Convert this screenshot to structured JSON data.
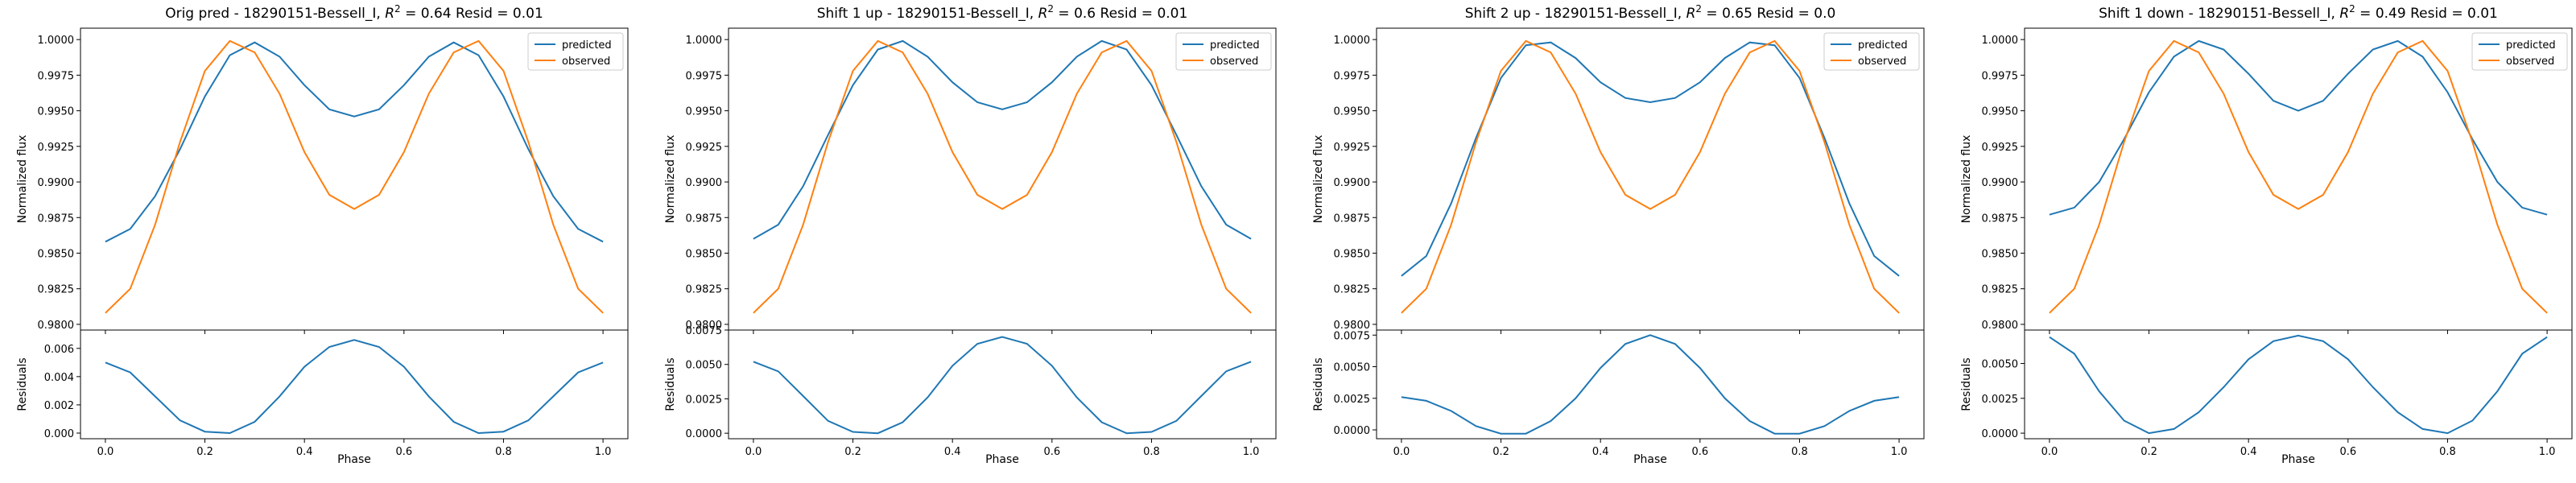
{
  "figure": {
    "xlabel": "Phase",
    "ylabel_top": "Normalized flux",
    "ylabel_bottom": "Residuals",
    "colors": {
      "predicted": "#1f77b4",
      "observed": "#ff7f0e"
    },
    "legend": [
      "predicted",
      "observed"
    ]
  },
  "chart_data": [
    {
      "type": "line",
      "title": "Orig pred - 18290151-Bessell_I, R² = 0.64 Resid = 0.01",
      "title_parts": {
        "prefix": "Orig pred - 18290151-Bessell_I, ",
        "r2_label": "R",
        "r2_sup": "2",
        "suffix": " = 0.64 Resid = 0.01"
      },
      "legend_placement": "top-right",
      "top": {
        "ylim": [
          0.9796,
          1.0008
        ],
        "yticks": [
          "0.9800",
          "0.9825",
          "0.9850",
          "0.9875",
          "0.9900",
          "0.9925",
          "0.9950",
          "0.9975",
          "1.0000"
        ],
        "xlim": [
          -0.05,
          1.05
        ],
        "series": [
          {
            "name": "predicted",
            "x": [
              0,
              0.05,
              0.1,
              0.15,
              0.2,
              0.25,
              0.3,
              0.35,
              0.4,
              0.45,
              0.5,
              0.55,
              0.6,
              0.65,
              0.7,
              0.75,
              0.8,
              0.85,
              0.9,
              0.95,
              1.0
            ],
            "y": [
              0.9858,
              0.9867,
              0.989,
              0.9923,
              0.996,
              0.9989,
              0.9998,
              0.9988,
              0.9968,
              0.9951,
              0.9946,
              0.9951,
              0.9968,
              0.9988,
              0.9998,
              0.9989,
              0.996,
              0.9923,
              0.989,
              0.9867,
              0.9858
            ]
          },
          {
            "name": "observed",
            "x": [
              0,
              0.05,
              0.1,
              0.15,
              0.2,
              0.25,
              0.3,
              0.35,
              0.4,
              0.45,
              0.5,
              0.55,
              0.6,
              0.65,
              0.7,
              0.75,
              0.8,
              0.85,
              0.9,
              0.95,
              1.0
            ],
            "y": [
              0.9808,
              0.9825,
              0.987,
              0.9928,
              0.9978,
              0.9999,
              0.9991,
              0.9962,
              0.9921,
              0.9891,
              0.9881,
              0.9891,
              0.9921,
              0.9962,
              0.9991,
              0.9999,
              0.9978,
              0.9928,
              0.987,
              0.9825,
              0.9808
            ]
          }
        ]
      },
      "bottom": {
        "ylim": [
          -0.0004,
          0.0073
        ],
        "yticks": [
          "0.000",
          "0.002",
          "0.004",
          "0.006"
        ],
        "xticks": [
          "0.0",
          "0.2",
          "0.4",
          "0.6",
          "0.8",
          "1.0"
        ],
        "x": [
          0,
          0.05,
          0.1,
          0.15,
          0.2,
          0.25,
          0.3,
          0.35,
          0.4,
          0.45,
          0.5,
          0.55,
          0.6,
          0.65,
          0.7,
          0.75,
          0.8,
          0.85,
          0.9,
          0.95,
          1.0
        ],
        "values": [
          0.005,
          0.0043,
          0.0026,
          0.0009,
          0.0001,
          0.0,
          0.0008,
          0.0026,
          0.0047,
          0.0061,
          0.0066,
          0.0061,
          0.0047,
          0.0026,
          0.0008,
          0.0,
          0.0001,
          0.0009,
          0.0026,
          0.0043,
          0.005
        ]
      }
    },
    {
      "type": "line",
      "title": "Shift 1 up - 18290151-Bessell_I, R² = 0.6 Resid = 0.01",
      "title_parts": {
        "prefix": "Shift 1 up - 18290151-Bessell_I, ",
        "r2_label": "R",
        "r2_sup": "2",
        "suffix": " = 0.6 Resid = 0.01"
      },
      "legend_placement": "top-right",
      "top": {
        "ylim": [
          0.9796,
          1.0008
        ],
        "yticks": [
          "0.9800",
          "0.9825",
          "0.9850",
          "0.9875",
          "0.9900",
          "0.9925",
          "0.9950",
          "0.9975",
          "1.0000"
        ],
        "xlim": [
          -0.05,
          1.05
        ],
        "series": [
          {
            "name": "predicted",
            "x": [
              0,
              0.05,
              0.1,
              0.15,
              0.2,
              0.25,
              0.3,
              0.35,
              0.4,
              0.45,
              0.5,
              0.55,
              0.6,
              0.65,
              0.7,
              0.75,
              0.8,
              0.85,
              0.9,
              0.95,
              1.0
            ],
            "y": [
              0.986,
              0.987,
              0.9897,
              0.9933,
              0.9968,
              0.9993,
              0.9999,
              0.9988,
              0.997,
              0.9956,
              0.9951,
              0.9956,
              0.997,
              0.9988,
              0.9999,
              0.9993,
              0.9968,
              0.9933,
              0.9897,
              0.987,
              0.986
            ]
          },
          {
            "name": "observed",
            "x": [
              0,
              0.05,
              0.1,
              0.15,
              0.2,
              0.25,
              0.3,
              0.35,
              0.4,
              0.45,
              0.5,
              0.55,
              0.6,
              0.65,
              0.7,
              0.75,
              0.8,
              0.85,
              0.9,
              0.95,
              1.0
            ],
            "y": [
              0.9808,
              0.9825,
              0.987,
              0.9928,
              0.9978,
              0.9999,
              0.9991,
              0.9962,
              0.9921,
              0.9891,
              0.9881,
              0.9891,
              0.9921,
              0.9962,
              0.9991,
              0.9999,
              0.9978,
              0.9928,
              0.987,
              0.9825,
              0.9808
            ]
          }
        ]
      },
      "bottom": {
        "ylim": [
          -0.0004,
          0.0075
        ],
        "yticks": [
          "0.0000",
          "0.0025",
          "0.0050",
          "0.0075"
        ],
        "xticks": [
          "0.0",
          "0.2",
          "0.4",
          "0.6",
          "0.8",
          "1.0"
        ],
        "x": [
          0,
          0.05,
          0.1,
          0.15,
          0.2,
          0.25,
          0.3,
          0.35,
          0.4,
          0.45,
          0.5,
          0.55,
          0.6,
          0.65,
          0.7,
          0.75,
          0.8,
          0.85,
          0.9,
          0.95,
          1.0
        ],
        "values": [
          0.0052,
          0.0045,
          0.0027,
          0.0009,
          0.0001,
          0.0,
          0.0008,
          0.0026,
          0.0049,
          0.0065,
          0.007,
          0.0065,
          0.0049,
          0.0026,
          0.0008,
          0.0,
          0.0001,
          0.0009,
          0.0027,
          0.0045,
          0.0052
        ]
      }
    },
    {
      "type": "line",
      "title": "Shift 2 up - 18290151-Bessell_I, R² = 0.65 Resid = 0.0",
      "title_parts": {
        "prefix": "Shift 2 up - 18290151-Bessell_I, ",
        "r2_label": "R",
        "r2_sup": "2",
        "suffix": " = 0.65 Resid = 0.0"
      },
      "legend_placement": "top-right",
      "top": {
        "ylim": [
          0.9796,
          1.0008
        ],
        "yticks": [
          "0.9800",
          "0.9825",
          "0.9850",
          "0.9875",
          "0.9900",
          "0.9925",
          "0.9950",
          "0.9975",
          "1.0000"
        ],
        "xlim": [
          -0.05,
          1.05
        ],
        "series": [
          {
            "name": "predicted",
            "x": [
              0,
              0.05,
              0.1,
              0.15,
              0.2,
              0.25,
              0.3,
              0.35,
              0.4,
              0.45,
              0.5,
              0.55,
              0.6,
              0.65,
              0.7,
              0.75,
              0.8,
              0.85,
              0.9,
              0.95,
              1.0
            ],
            "y": [
              0.9834,
              0.9848,
              0.9885,
              0.9931,
              0.9973,
              0.9996,
              0.9998,
              0.9987,
              0.997,
              0.9959,
              0.9956,
              0.9959,
              0.997,
              0.9987,
              0.9998,
              0.9996,
              0.9973,
              0.9931,
              0.9885,
              0.9848,
              0.9834
            ]
          },
          {
            "name": "observed",
            "x": [
              0,
              0.05,
              0.1,
              0.15,
              0.2,
              0.25,
              0.3,
              0.35,
              0.4,
              0.45,
              0.5,
              0.55,
              0.6,
              0.65,
              0.7,
              0.75,
              0.8,
              0.85,
              0.9,
              0.95,
              1.0
            ],
            "y": [
              0.9808,
              0.9825,
              0.987,
              0.9928,
              0.9978,
              0.9999,
              0.9991,
              0.9962,
              0.9921,
              0.9891,
              0.9881,
              0.9891,
              0.9921,
              0.9962,
              0.9991,
              0.9999,
              0.9978,
              0.9928,
              0.987,
              0.9825,
              0.9808
            ]
          }
        ]
      },
      "bottom": {
        "ylim": [
          -0.0007,
          0.0079
        ],
        "yticks": [
          "0.0000",
          "0.0025",
          "0.0050",
          "0.0075"
        ],
        "xticks": [
          "0.0",
          "0.2",
          "0.4",
          "0.6",
          "0.8",
          "1.0"
        ],
        "x": [
          0,
          0.05,
          0.1,
          0.15,
          0.2,
          0.25,
          0.3,
          0.35,
          0.4,
          0.45,
          0.5,
          0.55,
          0.6,
          0.65,
          0.7,
          0.75,
          0.8,
          0.85,
          0.9,
          0.95,
          1.0
        ],
        "values": [
          0.0026,
          0.0023,
          0.0015,
          0.0003,
          -0.0003,
          -0.0003,
          0.0007,
          0.0025,
          0.0049,
          0.0068,
          0.0075,
          0.0068,
          0.0049,
          0.0025,
          0.0007,
          -0.0003,
          -0.0003,
          0.0003,
          0.0015,
          0.0023,
          0.0026
        ]
      }
    },
    {
      "type": "line",
      "title": "Shift 1 down - 18290151-Bessell_I, R² = 0.49 Resid = 0.01",
      "title_parts": {
        "prefix": "Shift 1 down - 18290151-Bessell_I, ",
        "r2_label": "R",
        "r2_sup": "2",
        "suffix": " = 0.49 Resid = 0.01"
      },
      "legend_placement": "top-right",
      "top": {
        "ylim": [
          0.9796,
          1.0008
        ],
        "yticks": [
          "0.9800",
          "0.9825",
          "0.9850",
          "0.9875",
          "0.9900",
          "0.9925",
          "0.9950",
          "0.9975",
          "1.0000"
        ],
        "xlim": [
          -0.05,
          1.05
        ],
        "series": [
          {
            "name": "predicted",
            "x": [
              0,
              0.05,
              0.1,
              0.15,
              0.2,
              0.25,
              0.3,
              0.35,
              0.4,
              0.45,
              0.5,
              0.55,
              0.6,
              0.65,
              0.7,
              0.75,
              0.8,
              0.85,
              0.9,
              0.95,
              1.0
            ],
            "y": [
              0.9877,
              0.9882,
              0.99,
              0.993,
              0.9963,
              0.9988,
              0.9999,
              0.9993,
              0.9976,
              0.9957,
              0.995,
              0.9957,
              0.9976,
              0.9993,
              0.9999,
              0.9988,
              0.9963,
              0.993,
              0.99,
              0.9882,
              0.9877
            ]
          },
          {
            "name": "observed",
            "x": [
              0,
              0.05,
              0.1,
              0.15,
              0.2,
              0.25,
              0.3,
              0.35,
              0.4,
              0.45,
              0.5,
              0.55,
              0.6,
              0.65,
              0.7,
              0.75,
              0.8,
              0.85,
              0.9,
              0.95,
              1.0
            ],
            "y": [
              0.9808,
              0.9825,
              0.987,
              0.9928,
              0.9978,
              0.9999,
              0.9991,
              0.9962,
              0.9921,
              0.9891,
              0.9881,
              0.9891,
              0.9921,
              0.9962,
              0.9991,
              0.9999,
              0.9978,
              0.9928,
              0.987,
              0.9825,
              0.9808
            ]
          }
        ]
      },
      "bottom": {
        "ylim": [
          -0.0004,
          0.0074
        ],
        "yticks": [
          "0.0000",
          "0.0025",
          "0.0050"
        ],
        "xticks": [
          "0.0",
          "0.2",
          "0.4",
          "0.6",
          "0.8",
          "1.0"
        ],
        "x": [
          0,
          0.05,
          0.1,
          0.15,
          0.2,
          0.25,
          0.3,
          0.35,
          0.4,
          0.45,
          0.5,
          0.55,
          0.6,
          0.65,
          0.7,
          0.75,
          0.8,
          0.85,
          0.9,
          0.95,
          1.0
        ],
        "values": [
          0.0069,
          0.0057,
          0.003,
          0.0009,
          0.0,
          0.0003,
          0.0015,
          0.0033,
          0.0053,
          0.0066,
          0.007,
          0.0066,
          0.0053,
          0.0033,
          0.0015,
          0.0003,
          0.0,
          0.0009,
          0.003,
          0.0057,
          0.0069
        ]
      }
    }
  ]
}
